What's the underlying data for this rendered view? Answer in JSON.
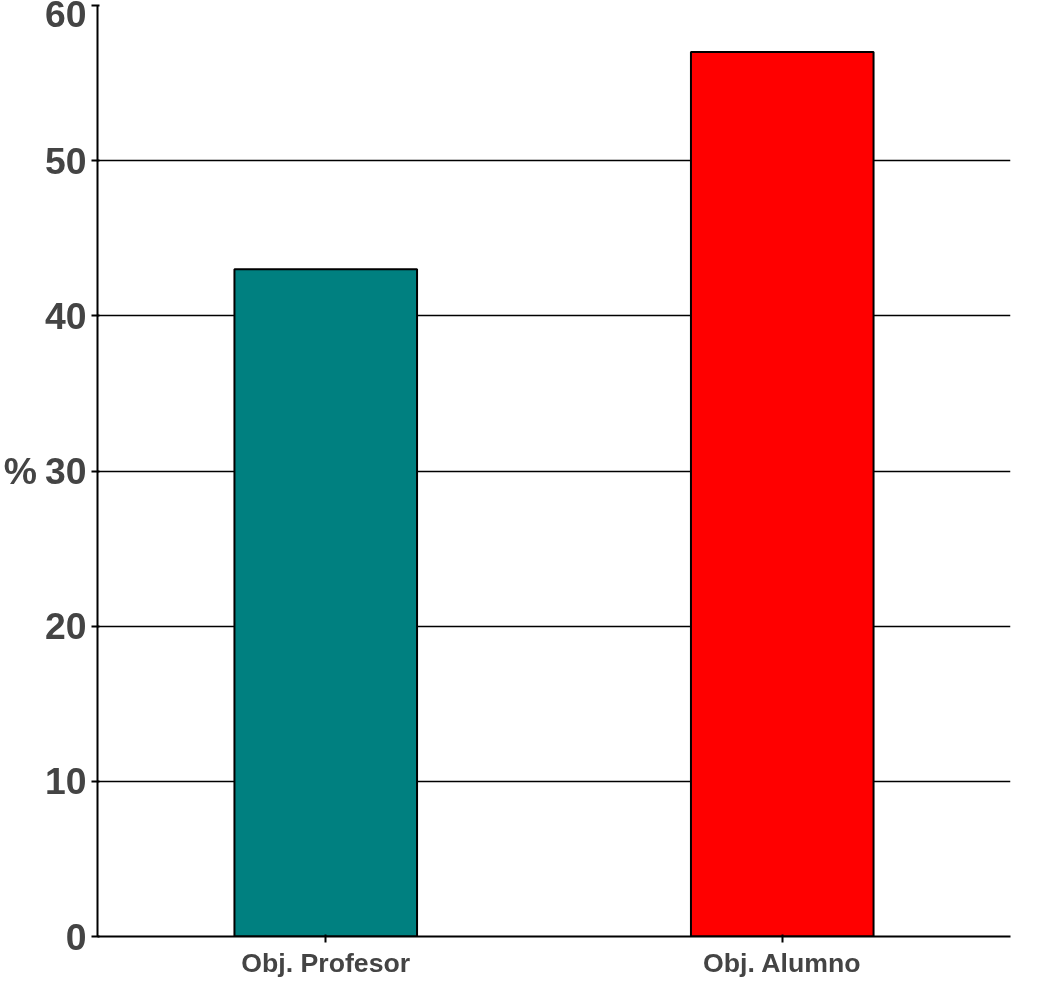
{
  "chart_data": {
    "type": "bar",
    "ylabel": "%",
    "categories": [
      "Obj. Profesor",
      "Obj. Alumno"
    ],
    "values": [
      43,
      57
    ],
    "colors": [
      "#008080",
      "#ff0000"
    ],
    "ylim": [
      0,
      60
    ],
    "yticks": [
      0,
      10,
      20,
      30,
      40,
      50,
      60
    ],
    "grid": "y"
  }
}
